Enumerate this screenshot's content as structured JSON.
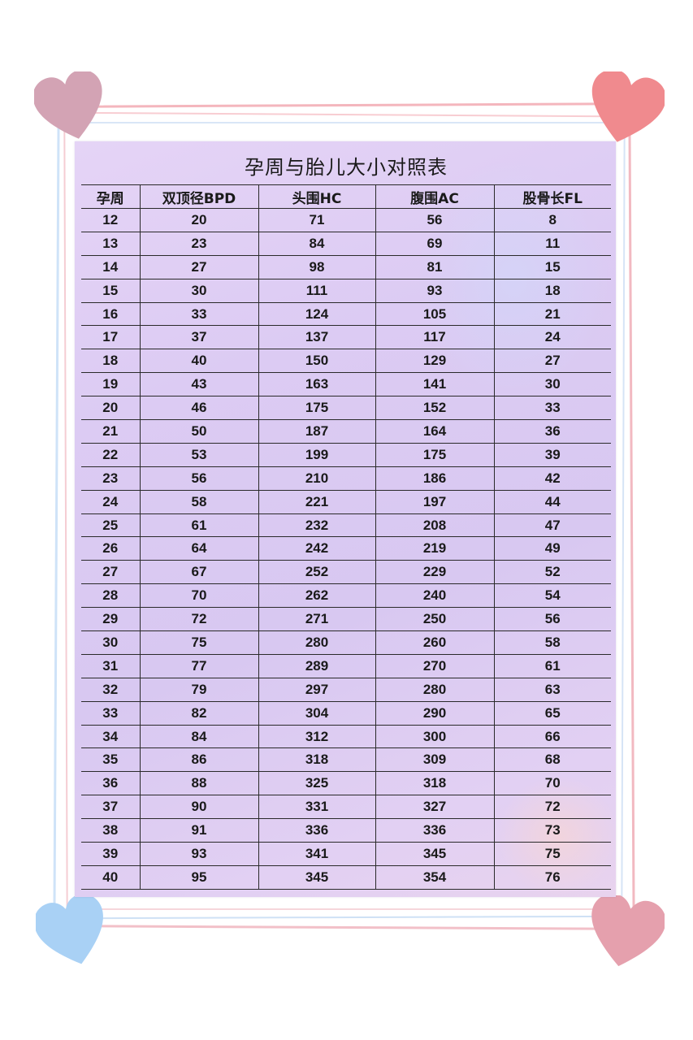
{
  "title": "孕周与胎儿大小对照表",
  "colors": {
    "sheet": "#dccbf3",
    "grid_line": "#2a2a2a",
    "heart_top_left": "#d3a3b4",
    "heart_top_right": "#f08a8e",
    "heart_bottom_left": "#a9d1f5",
    "heart_bottom_right": "#e5a0ad"
  },
  "icons": [
    "heart-icon"
  ],
  "table": {
    "headers": [
      "孕周",
      "双顶径BPD",
      "头围HC",
      "腹围AC",
      "股骨长FL"
    ],
    "rows": [
      [
        "12",
        "20",
        "71",
        "56",
        "8"
      ],
      [
        "13",
        "23",
        "84",
        "69",
        "11"
      ],
      [
        "14",
        "27",
        "98",
        "81",
        "15"
      ],
      [
        "15",
        "30",
        "111",
        "93",
        "18"
      ],
      [
        "16",
        "33",
        "124",
        "105",
        "21"
      ],
      [
        "17",
        "37",
        "137",
        "117",
        "24"
      ],
      [
        "18",
        "40",
        "150",
        "129",
        "27"
      ],
      [
        "19",
        "43",
        "163",
        "141",
        "30"
      ],
      [
        "20",
        "46",
        "175",
        "152",
        "33"
      ],
      [
        "21",
        "50",
        "187",
        "164",
        "36"
      ],
      [
        "22",
        "53",
        "199",
        "175",
        "39"
      ],
      [
        "23",
        "56",
        "210",
        "186",
        "42"
      ],
      [
        "24",
        "58",
        "221",
        "197",
        "44"
      ],
      [
        "25",
        "61",
        "232",
        "208",
        "47"
      ],
      [
        "26",
        "64",
        "242",
        "219",
        "49"
      ],
      [
        "27",
        "67",
        "252",
        "229",
        "52"
      ],
      [
        "28",
        "70",
        "262",
        "240",
        "54"
      ],
      [
        "29",
        "72",
        "271",
        "250",
        "56"
      ],
      [
        "30",
        "75",
        "280",
        "260",
        "58"
      ],
      [
        "31",
        "77",
        "289",
        "270",
        "61"
      ],
      [
        "32",
        "79",
        "297",
        "280",
        "63"
      ],
      [
        "33",
        "82",
        "304",
        "290",
        "65"
      ],
      [
        "34",
        "84",
        "312",
        "300",
        "66"
      ],
      [
        "35",
        "86",
        "318",
        "309",
        "68"
      ],
      [
        "36",
        "88",
        "325",
        "318",
        "70"
      ],
      [
        "37",
        "90",
        "331",
        "327",
        "72"
      ],
      [
        "38",
        "91",
        "336",
        "336",
        "73"
      ],
      [
        "39",
        "93",
        "341",
        "345",
        "75"
      ],
      [
        "40",
        "95",
        "345",
        "354",
        "76"
      ]
    ]
  }
}
